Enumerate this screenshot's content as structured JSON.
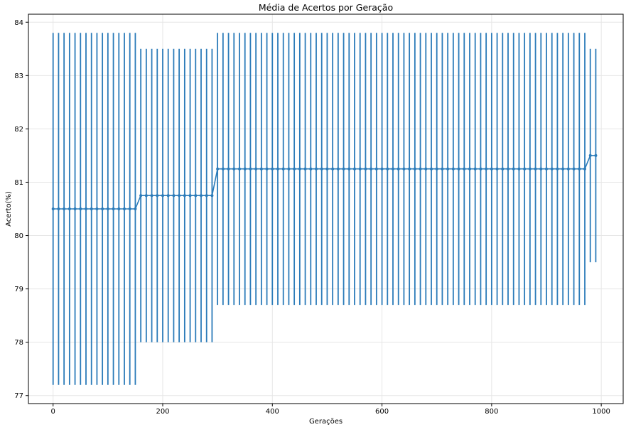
{
  "chart_data": {
    "type": "line",
    "title": "Média de Acertos por Geração",
    "xlabel": "Gerações",
    "ylabel": "Acerto(%)",
    "xlim": [
      -45,
      1040
    ],
    "ylim": [
      76.85,
      84.15
    ],
    "xticks": [
      0,
      200,
      400,
      600,
      800,
      1000
    ],
    "yticks": [
      77,
      78,
      79,
      80,
      81,
      82,
      83,
      84
    ],
    "grid": true,
    "color": "#2b7bb9",
    "series": [
      {
        "x_start": 0,
        "x_step": 10,
        "segments": [
          {
            "count": 16,
            "mean": 80.5,
            "err_low": 77.2,
            "err_high": 83.8
          },
          {
            "count": 14,
            "mean": 80.75,
            "err_low": 78.0,
            "err_high": 83.5
          },
          {
            "count": 68,
            "mean": 81.25,
            "err_low": 78.7,
            "err_high": 83.8
          },
          {
            "count": 2,
            "mean": 81.5,
            "err_low": 79.5,
            "err_high": 83.5
          }
        ]
      }
    ]
  }
}
